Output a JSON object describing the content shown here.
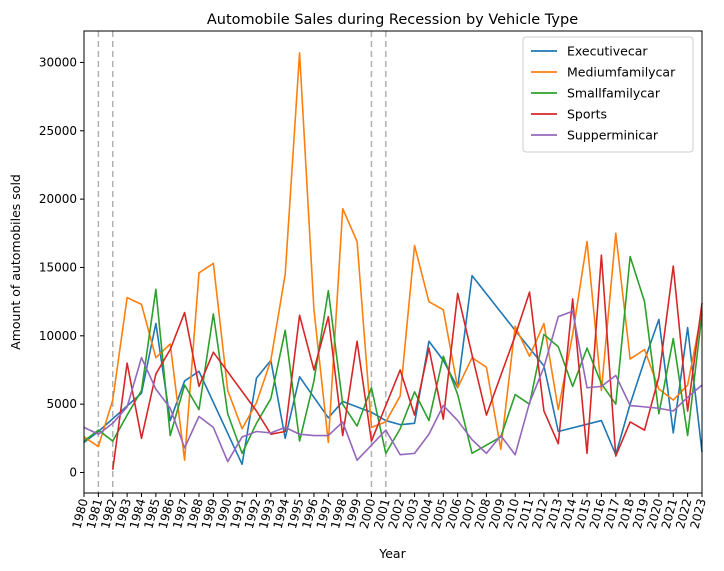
{
  "chart_data": {
    "type": "line",
    "title": "Automobile Sales during Recession by Vehicle Type",
    "xlabel": "Year",
    "ylabel": "Amount of automobiles sold",
    "xlim": [
      1980,
      2023
    ],
    "ylim": [
      -1500,
      32300
    ],
    "x_ticks": [
      "1980",
      "1981",
      "1982",
      "1983",
      "1984",
      "1985",
      "1986",
      "1987",
      "1988",
      "1989",
      "1990",
      "1991",
      "1992",
      "1993",
      "1994",
      "1995",
      "1996",
      "1997",
      "1998",
      "1999",
      "2000",
      "2001",
      "2002",
      "2003",
      "2004",
      "2005",
      "2006",
      "2007",
      "2008",
      "2009",
      "2010",
      "2011",
      "2012",
      "2013",
      "2014",
      "2015",
      "2016",
      "2017",
      "2018",
      "2019",
      "2020",
      "2021",
      "2022",
      "2023"
    ],
    "y_ticks": [
      0,
      5000,
      10000,
      15000,
      20000,
      25000,
      30000
    ],
    "recession_lines": [
      1981,
      1982,
      2000,
      2001
    ],
    "legend_position": "top-right",
    "grid": false,
    "series": [
      {
        "name": "Executivecar",
        "color": "#1f77b4",
        "points": [
          [
            1980,
            2200
          ],
          [
            1981,
            3000
          ],
          [
            1984,
            5800
          ],
          [
            1985,
            10900
          ],
          [
            1986,
            3800
          ],
          [
            1987,
            6700
          ],
          [
            1988,
            7400
          ],
          [
            1991,
            600
          ],
          [
            1992,
            6900
          ],
          [
            1993,
            8200
          ],
          [
            1994,
            2500
          ],
          [
            1995,
            7000
          ],
          [
            1997,
            4000
          ],
          [
            1998,
            5200
          ],
          [
            2000,
            4400
          ],
          [
            2001,
            3800
          ],
          [
            2002,
            3500
          ],
          [
            2003,
            3600
          ],
          [
            2004,
            9600
          ],
          [
            2005,
            8200
          ],
          [
            2006,
            6200
          ],
          [
            2007,
            14400
          ],
          [
            2010,
            10400
          ],
          [
            2012,
            7800
          ],
          [
            2013,
            3000
          ],
          [
            2016,
            3800
          ],
          [
            2017,
            1300
          ],
          [
            2018,
            5000
          ],
          [
            2019,
            8200
          ],
          [
            2020,
            11200
          ],
          [
            2021,
            2900
          ],
          [
            2022,
            10600
          ],
          [
            2023,
            1500
          ]
        ]
      },
      {
        "name": "Mediumfamilycar",
        "color": "#ff7f0e",
        "points": [
          [
            1980,
            2600
          ],
          [
            1981,
            1900
          ],
          [
            1982,
            5300
          ],
          [
            1983,
            12800
          ],
          [
            1984,
            12300
          ],
          [
            1985,
            8400
          ],
          [
            1986,
            9400
          ],
          [
            1987,
            900
          ],
          [
            1988,
            14600
          ],
          [
            1989,
            15300
          ],
          [
            1990,
            6000
          ],
          [
            1991,
            3200
          ],
          [
            1992,
            5100
          ],
          [
            1993,
            8200
          ],
          [
            1994,
            14500
          ],
          [
            1995,
            30700
          ],
          [
            1996,
            11900
          ],
          [
            1997,
            2200
          ],
          [
            1998,
            19300
          ],
          [
            1999,
            16900
          ],
          [
            2000,
            3300
          ],
          [
            2001,
            3700
          ],
          [
            2002,
            5600
          ],
          [
            2003,
            16600
          ],
          [
            2004,
            12500
          ],
          [
            2005,
            11900
          ],
          [
            2006,
            6200
          ],
          [
            2007,
            8400
          ],
          [
            2008,
            7700
          ],
          [
            2009,
            1700
          ],
          [
            2010,
            10700
          ],
          [
            2011,
            8500
          ],
          [
            2012,
            10900
          ],
          [
            2013,
            4600
          ],
          [
            2014,
            10100
          ],
          [
            2015,
            16900
          ],
          [
            2016,
            6000
          ],
          [
            2017,
            17500
          ],
          [
            2018,
            8300
          ],
          [
            2019,
            9000
          ],
          [
            2020,
            6100
          ],
          [
            2021,
            5300
          ],
          [
            2022,
            6400
          ],
          [
            2023,
            11800
          ]
        ]
      },
      {
        "name": "Smallfamilycar",
        "color": "#2ca02c",
        "points": [
          [
            1980,
            2300
          ],
          [
            1981,
            3100
          ],
          [
            1982,
            2300
          ],
          [
            1983,
            4200
          ],
          [
            1984,
            6000
          ],
          [
            1985,
            13400
          ],
          [
            1986,
            2700
          ],
          [
            1987,
            6400
          ],
          [
            1988,
            4600
          ],
          [
            1989,
            11600
          ],
          [
            1990,
            4300
          ],
          [
            1991,
            1400
          ],
          [
            1992,
            3600
          ],
          [
            1993,
            5400
          ],
          [
            1994,
            10400
          ],
          [
            1995,
            2300
          ],
          [
            1996,
            6700
          ],
          [
            1997,
            13300
          ],
          [
            1998,
            5000
          ],
          [
            1999,
            3400
          ],
          [
            2000,
            6200
          ],
          [
            2001,
            1400
          ],
          [
            2002,
            3200
          ],
          [
            2003,
            5900
          ],
          [
            2004,
            3800
          ],
          [
            2005,
            8500
          ],
          [
            2006,
            5700
          ],
          [
            2007,
            1400
          ],
          [
            2009,
            2600
          ],
          [
            2010,
            5700
          ],
          [
            2011,
            5000
          ],
          [
            2012,
            10100
          ],
          [
            2013,
            9200
          ],
          [
            2014,
            6300
          ],
          [
            2015,
            9100
          ],
          [
            2016,
            6500
          ],
          [
            2017,
            5000
          ],
          [
            2018,
            15800
          ],
          [
            2019,
            12500
          ],
          [
            2020,
            4300
          ],
          [
            2021,
            9800
          ],
          [
            2022,
            2700
          ],
          [
            2023,
            11600
          ]
        ]
      },
      {
        "name": "Sports",
        "color": "#d62728",
        "points": [
          [
            1982,
            200
          ],
          [
            1983,
            8000
          ],
          [
            1984,
            2500
          ],
          [
            1985,
            7200
          ],
          [
            1986,
            9000
          ],
          [
            1987,
            11700
          ],
          [
            1988,
            6300
          ],
          [
            1989,
            8800
          ],
          [
            1992,
            4500
          ],
          [
            1993,
            2800
          ],
          [
            1994,
            3000
          ],
          [
            1995,
            11500
          ],
          [
            1996,
            7500
          ],
          [
            1997,
            11400
          ],
          [
            1998,
            2700
          ],
          [
            1999,
            9600
          ],
          [
            2000,
            2300
          ],
          [
            2002,
            7500
          ],
          [
            2003,
            4200
          ],
          [
            2004,
            9100
          ],
          [
            2005,
            3900
          ],
          [
            2006,
            13100
          ],
          [
            2007,
            8600
          ],
          [
            2008,
            4200
          ],
          [
            2010,
            10000
          ],
          [
            2011,
            13200
          ],
          [
            2012,
            4500
          ],
          [
            2013,
            2100
          ],
          [
            2014,
            12700
          ],
          [
            2015,
            1400
          ],
          [
            2016,
            15900
          ],
          [
            2017,
            1200
          ],
          [
            2018,
            3700
          ],
          [
            2019,
            3100
          ],
          [
            2020,
            7000
          ],
          [
            2021,
            15100
          ],
          [
            2022,
            4500
          ],
          [
            2023,
            12400
          ]
        ]
      },
      {
        "name": "Supperminicar",
        "color": "#9467bd",
        "points": [
          [
            1980,
            3300
          ],
          [
            1981,
            2800
          ],
          [
            1982,
            3600
          ],
          [
            1983,
            4800
          ],
          [
            1984,
            8400
          ],
          [
            1985,
            6100
          ],
          [
            1986,
            4700
          ],
          [
            1987,
            1800
          ],
          [
            1988,
            4100
          ],
          [
            1989,
            3300
          ],
          [
            1990,
            800
          ],
          [
            1991,
            2600
          ],
          [
            1992,
            3000
          ],
          [
            1993,
            2900
          ],
          [
            1994,
            3300
          ],
          [
            1995,
            2800
          ],
          [
            1996,
            2700
          ],
          [
            1997,
            2700
          ],
          [
            1998,
            3700
          ],
          [
            1999,
            900
          ],
          [
            2000,
            2000
          ],
          [
            2001,
            3100
          ],
          [
            2002,
            1300
          ],
          [
            2003,
            1400
          ],
          [
            2004,
            2800
          ],
          [
            2005,
            4900
          ],
          [
            2006,
            3800
          ],
          [
            2007,
            2400
          ],
          [
            2008,
            1400
          ],
          [
            2009,
            2700
          ],
          [
            2010,
            1300
          ],
          [
            2011,
            5100
          ],
          [
            2012,
            7700
          ],
          [
            2013,
            11400
          ],
          [
            2014,
            11800
          ],
          [
            2015,
            6200
          ],
          [
            2016,
            6300
          ],
          [
            2017,
            7100
          ],
          [
            2018,
            4900
          ],
          [
            2019,
            4800
          ],
          [
            2020,
            4700
          ],
          [
            2021,
            4500
          ],
          [
            2022,
            5500
          ],
          [
            2023,
            6400
          ]
        ]
      }
    ]
  }
}
